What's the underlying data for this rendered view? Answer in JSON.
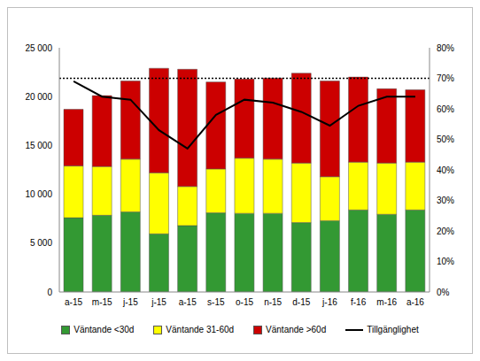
{
  "chart_data": {
    "type": "bar",
    "stacked": true,
    "grid": false,
    "legend": "bottom",
    "categories": [
      "a-15",
      "m-15",
      "j-15",
      "j-15",
      "a-15",
      "s-15",
      "o-15",
      "n-15",
      "d-15",
      "j-16",
      "f-16",
      "m-16",
      "a-16"
    ],
    "series": [
      {
        "name": "Väntande <30d",
        "color": "#339933",
        "values": [
          7600,
          7850,
          8200,
          5950,
          6800,
          8100,
          8050,
          8050,
          7100,
          7300,
          8400,
          7950,
          8400
        ]
      },
      {
        "name": "Väntande 31-60d",
        "color": "#ffff00",
        "values": [
          5300,
          5000,
          5400,
          6250,
          4000,
          4500,
          5650,
          5550,
          6100,
          4500,
          4900,
          5250,
          4900
        ]
      },
      {
        "name": "Väntande >60d",
        "color": "#cc0000",
        "values": [
          5800,
          7250,
          8000,
          10700,
          12000,
          8900,
          8100,
          8300,
          9200,
          9800,
          8700,
          7600,
          7400
        ]
      },
      {
        "name": "Tillgänglighet",
        "type": "line",
        "axis": "y2",
        "color": "#000000",
        "values": [
          69,
          64,
          63,
          53,
          47,
          58,
          63,
          62,
          59,
          54.5,
          61,
          64,
          64
        ]
      }
    ],
    "reference_line": {
      "value": 70,
      "axis": "y2",
      "line_style": "dotted",
      "color": "#000000"
    },
    "ylim": [
      0,
      25000
    ],
    "yticks": [
      0,
      {
        "value": 5000,
        "label": "5 000"
      },
      {
        "value": 10000,
        "label": "10 000"
      },
      {
        "value": 15000,
        "label": "15 000"
      },
      {
        "value": 20000,
        "label": "20 000"
      },
      {
        "value": 25000,
        "label": "25 000"
      }
    ],
    "y2lim": [
      0,
      80
    ],
    "y2ticks": [
      {
        "value": 0,
        "label": "0%"
      },
      {
        "value": 10,
        "label": "10%"
      },
      {
        "value": 20,
        "label": "20%"
      },
      {
        "value": 30,
        "label": "30%"
      },
      {
        "value": 40,
        "label": "40%"
      },
      {
        "value": 50,
        "label": "50%"
      },
      {
        "value": 60,
        "label": "60%"
      },
      {
        "value": 70,
        "label": "70%"
      },
      {
        "value": 80,
        "label": "80%"
      }
    ]
  }
}
